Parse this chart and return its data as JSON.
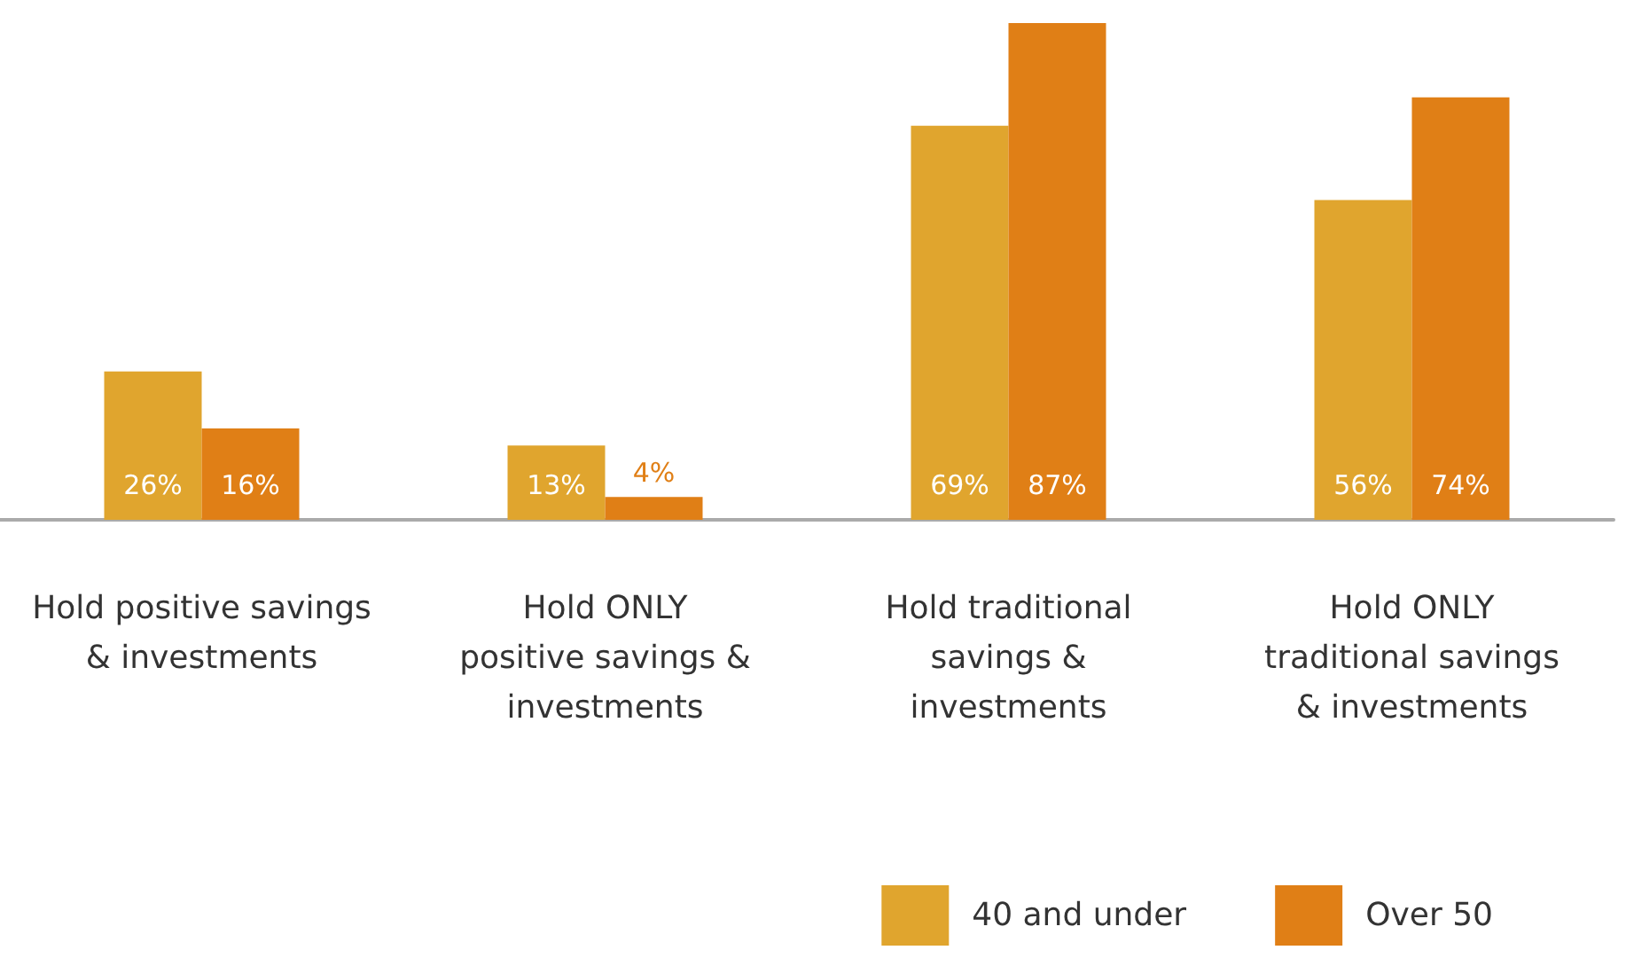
{
  "chart_data": {
    "type": "bar",
    "categories": [
      "Hold positive savings\n& investments",
      "Hold ONLY\npositive savings &\ninvestments",
      "Hold traditional\nsavings &\ninvestments",
      "Hold ONLY\ntraditional savings\n& investments"
    ],
    "series": [
      {
        "name": "40 and under",
        "color": "#e0a52e",
        "values": [
          26,
          13,
          69,
          56
        ],
        "value_labels": [
          "26%",
          "13%",
          "69%",
          "56%"
        ]
      },
      {
        "name": "Over 50",
        "color": "#e07f16",
        "values": [
          16,
          4,
          87,
          74
        ],
        "value_labels": [
          "16%",
          "4%",
          "87%",
          "74%"
        ]
      }
    ],
    "legend": "bottom right"
  }
}
